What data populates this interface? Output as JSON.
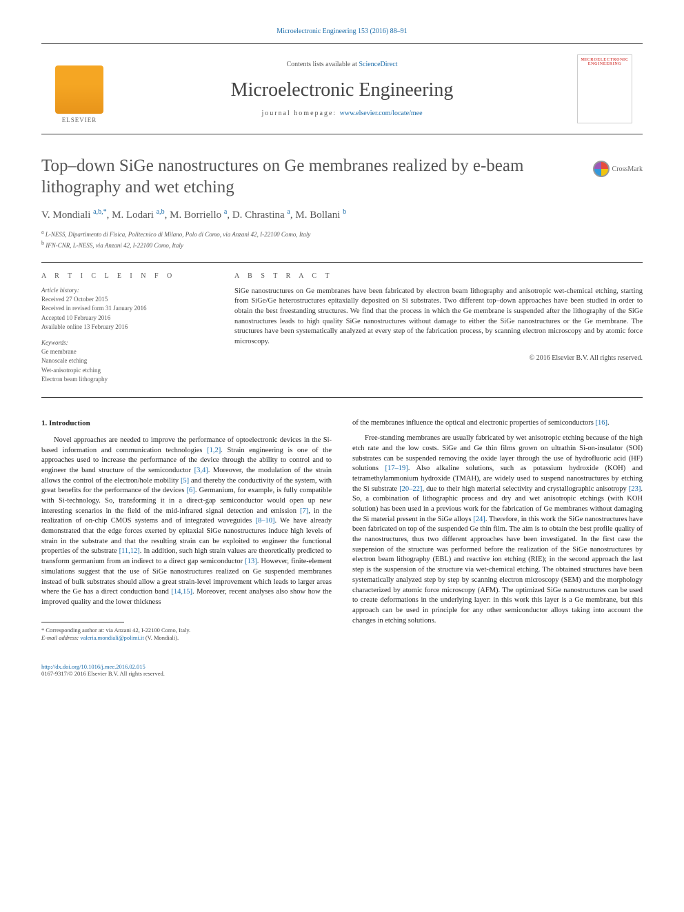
{
  "header_citation": "Microelectronic Engineering 153 (2016) 88–91",
  "masthead": {
    "contents_prefix": "Contents lists available at ",
    "contents_link": "ScienceDirect",
    "journal": "Microelectronic Engineering",
    "homepage_prefix": "journal homepage: ",
    "homepage_url": "www.elsevier.com/locate/mee",
    "elsevier_label": "ELSEVIER",
    "cover_label": "MICROELECTRONIC ENGINEERING"
  },
  "crossmark": "CrossMark",
  "title": "Top–down SiGe nanostructures on Ge membranes realized by e-beam lithography and wet etching",
  "authors_html": "V. Mondiali <sup>a,b,*</sup>, M. Lodari <sup>a,b</sup>, M. Borriello <sup>a</sup>, D. Chrastina <sup>a</sup>, M. Bollani <sup>b</sup>",
  "affiliations": [
    {
      "sup": "a",
      "text": "L-NESS, Dipartimento di Fisica, Politecnico di Milano, Polo di Como, via Anzani 42, I-22100 Como, Italy"
    },
    {
      "sup": "b",
      "text": "IFN-CNR, L-NESS, via Anzani 42, I-22100 Como, Italy"
    }
  ],
  "article_info": {
    "heading": "A R T I C L E   I N F O",
    "history_label": "Article history:",
    "history": [
      "Received 27 October 2015",
      "Received in revised form 31 January 2016",
      "Accepted 10 February 2016",
      "Available online 13 February 2016"
    ],
    "keywords_label": "Keywords:",
    "keywords": [
      "Ge membrane",
      "Nanoscale etching",
      "Wet-anisotropic etching",
      "Electron beam lithography"
    ]
  },
  "abstract": {
    "heading": "A B S T R A C T",
    "text": "SiGe nanostructures on Ge membranes have been fabricated by electron beam lithography and anisotropic wet-chemical etching, starting from SiGe/Ge heterostructures epitaxially deposited on Si substrates. Two different top–down approaches have been studied in order to obtain the best freestanding structures. We find that the process in which the Ge membrane is suspended after the lithography of the SiGe nanostructures leads to high quality SiGe nanostructures without damage to either the SiGe nanostructures or the Ge membrane. The structures have been systematically analyzed at every step of the fabrication process, by scanning electron microscopy and by atomic force microscopy.",
    "copyright": "© 2016 Elsevier B.V. All rights reserved."
  },
  "body": {
    "section_heading": "1. Introduction",
    "col1_p1": "Novel approaches are needed to improve the performance of optoelectronic devices in the Si-based information and communication technologies [1,2]. Strain engineering is one of the approaches used to increase the performance of the device through the ability to control and to engineer the band structure of the semiconductor [3,4]. Moreover, the modulation of the strain allows the control of the electron/hole mobility [5] and thereby the conductivity of the system, with great benefits for the performance of the devices [6]. Germanium, for example, is fully compatible with Si-technology. So, transforming it in a direct-gap semiconductor would open up new interesting scenarios in the field of the mid-infrared signal detection and emission [7], in the realization of on-chip CMOS systems and of integrated waveguides [8–10]. We have already demonstrated that the edge forces exerted by epitaxial SiGe nanostructures induce high levels of strain in the substrate and that the resulting strain can be exploited to engineer the functional properties of the substrate [11,12]. In addition, such high strain values are theoretically predicted to transform germanium from an indirect to a direct gap semiconductor [13]. However, finite-element simulations suggest that the use of SiGe nanostructures realized on Ge suspended membranes instead of bulk substrates should allow a great strain-level improvement which leads to larger areas where the Ge has a direct conduction band [14,15]. Moreover, recent analyses also show how the improved quality and the lower thickness",
    "col2_p1": "of the membranes influence the optical and electronic properties of semiconductors [16].",
    "col2_p2": "Free-standing membranes are usually fabricated by wet anisotropic etching because of the high etch rate and the low costs. SiGe and Ge thin films grown on ultrathin Si-on-insulator (SOI) substrates can be suspended removing the oxide layer through the use of hydrofluoric acid (HF) solutions [17–19]. Also alkaline solutions, such as potassium hydroxide (KOH) and tetramethylammonium hydroxide (TMAH), are widely used to suspend nanostructures by etching the Si substrate [20–22], due to their high material selectivity and crystallographic anisotropy [23]. So, a combination of lithographic process and dry and wet anisotropic etchings (with KOH solution) has been used in a previous work for the fabrication of Ge membranes without damaging the Si material present in the SiGe alloys [24]. Therefore, in this work the SiGe nanostructures have been fabricated on top of the suspended Ge thin film. The aim is to obtain the best profile quality of the nanostructures, thus two different approaches have been investigated. In the first case the suspension of the structure was performed before the realization of the SiGe nanostructures by electron beam lithography (EBL) and reactive ion etching (RIE); in the second approach the last step is the suspension of the structure via wet-chemical etching. The obtained structures have been systematically analyzed step by step by scanning electron microscopy (SEM) and the morphology characterized by atomic force microscopy (AFM). The optimized SiGe nanostructures can be used to create deformations in the underlying layer: in this work this layer is a Ge membrane, but this approach can be used in principle for any other semiconductor alloys taking into account the changes in etching solutions."
  },
  "footnote": {
    "star": "* Corresponding author at: via Anzani 42, I-22100 Como, Italy.",
    "email_label": "E-mail address:",
    "email": "valeria.mondiali@polimi.it",
    "email_suffix": "(V. Mondiali)."
  },
  "footer": {
    "doi": "http://dx.doi.org/10.1016/j.mee.2016.02.015",
    "issn": "0167-9317/© 2016 Elsevier B.V. All rights reserved."
  },
  "colors": {
    "link": "#1a6ba8",
    "text": "#333333",
    "muted": "#555555"
  }
}
